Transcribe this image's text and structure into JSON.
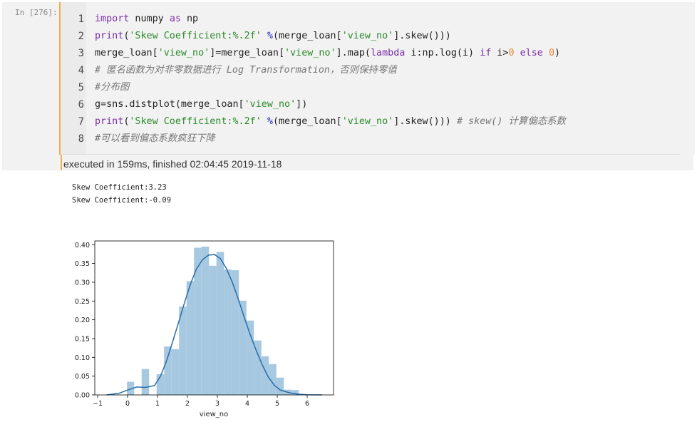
{
  "cell": {
    "prompt": "In [276]:",
    "line_numbers": [
      "1",
      "2",
      "3",
      "4",
      "5",
      "6",
      "7",
      "8"
    ],
    "lines": [
      [
        {
          "t": "import",
          "c": "kw"
        },
        {
          "t": " numpy ",
          "c": ""
        },
        {
          "t": "as",
          "c": "kw"
        },
        {
          "t": " np",
          "c": ""
        }
      ],
      [
        {
          "t": "print",
          "c": "kw"
        },
        {
          "t": "(",
          "c": ""
        },
        {
          "t": "'Skew Coefficient:%.2f'",
          "c": "str"
        },
        {
          "t": " ",
          "c": ""
        },
        {
          "t": "%",
          "c": "op"
        },
        {
          "t": "(merge_loan[",
          "c": ""
        },
        {
          "t": "'view_no'",
          "c": "str"
        },
        {
          "t": "].skew()))",
          "c": ""
        }
      ],
      [
        {
          "t": "merge_loan[",
          "c": ""
        },
        {
          "t": "'view_no'",
          "c": "str"
        },
        {
          "t": "]=merge_loan[",
          "c": ""
        },
        {
          "t": "'view_no'",
          "c": "str"
        },
        {
          "t": "].map(",
          "c": ""
        },
        {
          "t": "lambda",
          "c": "kw"
        },
        {
          "t": " i:np.log(i) ",
          "c": ""
        },
        {
          "t": "if",
          "c": "kw"
        },
        {
          "t": " i>",
          "c": ""
        },
        {
          "t": "0",
          "c": "num"
        },
        {
          "t": " ",
          "c": ""
        },
        {
          "t": "else",
          "c": "kw"
        },
        {
          "t": " ",
          "c": ""
        },
        {
          "t": "0",
          "c": "num"
        },
        {
          "t": ")",
          "c": ""
        }
      ],
      [
        {
          "t": "# 匿名函数为对非零数据进行 Log Transformation，否则保持零值",
          "c": "cm"
        }
      ],
      [
        {
          "t": "#分布图",
          "c": "cm"
        }
      ],
      [
        {
          "t": "g=sns.distplot(merge_loan[",
          "c": ""
        },
        {
          "t": "'view_no'",
          "c": "str"
        },
        {
          "t": "])",
          "c": ""
        }
      ],
      [
        {
          "t": "print",
          "c": "kw"
        },
        {
          "t": "(",
          "c": ""
        },
        {
          "t": "'Skew Coefficient:%.2f'",
          "c": "str"
        },
        {
          "t": " ",
          "c": ""
        },
        {
          "t": "%",
          "c": "op"
        },
        {
          "t": "(merge_loan[",
          "c": ""
        },
        {
          "t": "'view_no'",
          "c": "str"
        },
        {
          "t": "].skew())) ",
          "c": ""
        },
        {
          "t": "# skew() 计算偏态系数",
          "c": "cm"
        }
      ],
      [
        {
          "t": "#可以看到偏态系数疯狂下降",
          "c": "cm"
        }
      ]
    ],
    "execution_info": "executed in 159ms, finished 02:04:45 2019-11-18"
  },
  "output": {
    "lines": [
      "Skew Coefficient:3.23",
      "Skew Coefficient:-0.09"
    ]
  },
  "colors": {
    "bar": "#a6c8e0",
    "kde": "#2a6ea8",
    "cell_bg": "#f2f2f2",
    "accent": "#f0ad4e"
  },
  "chart_data": {
    "type": "bar",
    "xlabel": "view_no",
    "ylabel": "",
    "xlim": [
      -1,
      7
    ],
    "ylim": [
      0,
      0.41
    ],
    "xticks": [
      "-1",
      "0",
      "1",
      "2",
      "3",
      "4",
      "5",
      "6"
    ],
    "yticks": [
      "0.00",
      "0.05",
      "0.10",
      "0.15",
      "0.20",
      "0.25",
      "0.30",
      "0.35",
      "0.40"
    ],
    "bins": [
      {
        "x0": -0.02,
        "x1": 0.22,
        "value": 0.035
      },
      {
        "x0": 0.47,
        "x1": 0.72,
        "value": 0.069
      },
      {
        "x0": 0.97,
        "x1": 1.22,
        "value": 0.055
      },
      {
        "x0": 1.22,
        "x1": 1.47,
        "value": 0.129
      },
      {
        "x0": 1.47,
        "x1": 1.72,
        "value": 0.122
      },
      {
        "x0": 1.72,
        "x1": 1.97,
        "value": 0.235
      },
      {
        "x0": 1.97,
        "x1": 2.22,
        "value": 0.303
      },
      {
        "x0": 2.22,
        "x1": 2.47,
        "value": 0.392
      },
      {
        "x0": 2.47,
        "x1": 2.72,
        "value": 0.395
      },
      {
        "x0": 2.72,
        "x1": 2.97,
        "value": 0.344
      },
      {
        "x0": 2.97,
        "x1": 3.22,
        "value": 0.381
      },
      {
        "x0": 3.22,
        "x1": 3.47,
        "value": 0.334
      },
      {
        "x0": 3.47,
        "x1": 3.72,
        "value": 0.332
      },
      {
        "x0": 3.72,
        "x1": 3.97,
        "value": 0.251
      },
      {
        "x0": 3.97,
        "x1": 4.22,
        "value": 0.198
      },
      {
        "x0": 4.22,
        "x1": 4.47,
        "value": 0.145
      },
      {
        "x0": 4.47,
        "x1": 4.72,
        "value": 0.103
      },
      {
        "x0": 4.72,
        "x1": 4.97,
        "value": 0.082
      },
      {
        "x0": 4.97,
        "x1": 5.22,
        "value": 0.046
      },
      {
        "x0": 5.22,
        "x1": 5.47,
        "value": 0.014
      },
      {
        "x0": 5.47,
        "x1": 5.72,
        "value": 0.013
      }
    ],
    "kde": [
      [
        -0.7,
        0.0
      ],
      [
        -0.3,
        0.004
      ],
      [
        0.0,
        0.013
      ],
      [
        0.3,
        0.021
      ],
      [
        0.6,
        0.02
      ],
      [
        0.9,
        0.025
      ],
      [
        1.1,
        0.05
      ],
      [
        1.3,
        0.09
      ],
      [
        1.5,
        0.14
      ],
      [
        1.7,
        0.192
      ],
      [
        1.9,
        0.245
      ],
      [
        2.1,
        0.295
      ],
      [
        2.3,
        0.335
      ],
      [
        2.5,
        0.36
      ],
      [
        2.7,
        0.372
      ],
      [
        2.9,
        0.374
      ],
      [
        3.1,
        0.363
      ],
      [
        3.3,
        0.337
      ],
      [
        3.5,
        0.3
      ],
      [
        3.7,
        0.255
      ],
      [
        3.9,
        0.206
      ],
      [
        4.1,
        0.16
      ],
      [
        4.3,
        0.118
      ],
      [
        4.5,
        0.08
      ],
      [
        4.7,
        0.048
      ],
      [
        4.9,
        0.026
      ],
      [
        5.1,
        0.013
      ],
      [
        5.4,
        0.006
      ],
      [
        5.7,
        0.002
      ],
      [
        6.0,
        0.0005
      ],
      [
        6.5,
        0.0
      ]
    ]
  }
}
